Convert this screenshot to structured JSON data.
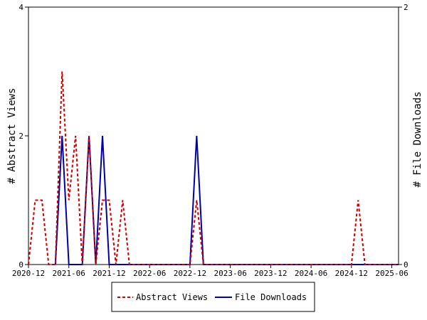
{
  "chart_data": {
    "type": "line",
    "x_ticks": [
      "2020-12",
      "2021-06",
      "2021-12",
      "2022-06",
      "2022-12",
      "2023-06",
      "2023-12",
      "2024-06",
      "2024-12",
      "2025-06"
    ],
    "xlim": [
      "2020-12",
      "2025-07"
    ],
    "ylabel_left": "# Abstract Views",
    "ylabel_right": "# File Downloads",
    "ylim_left": [
      0,
      4
    ],
    "ylim_right": [
      0,
      2
    ],
    "yticks_left": [
      0,
      2,
      4
    ],
    "yticks_right": [
      0,
      2
    ],
    "legend_position": "bottom",
    "series": [
      {
        "name": "Abstract Views",
        "axis": "left",
        "color": "#cc0000",
        "style": "dashed",
        "points": [
          [
            "2020-12",
            0
          ],
          [
            "2021-01",
            1
          ],
          [
            "2021-02",
            1
          ],
          [
            "2021-03",
            0
          ],
          [
            "2021-04",
            0
          ],
          [
            "2021-05",
            3
          ],
          [
            "2021-06",
            1
          ],
          [
            "2021-07",
            2
          ],
          [
            "2021-08",
            0
          ],
          [
            "2021-09",
            2
          ],
          [
            "2021-10",
            0
          ],
          [
            "2021-11",
            1
          ],
          [
            "2021-12",
            1
          ],
          [
            "2022-01",
            0
          ],
          [
            "2022-02",
            1
          ],
          [
            "2022-03",
            0
          ],
          [
            "2022-12",
            0
          ],
          [
            "2023-01",
            1
          ],
          [
            "2023-02",
            0
          ],
          [
            "2024-12",
            0
          ],
          [
            "2025-01",
            1
          ],
          [
            "2025-02",
            0
          ],
          [
            "2025-07",
            0
          ]
        ]
      },
      {
        "name": "File Downloads",
        "axis": "right",
        "color": "#0000aa",
        "style": "solid",
        "points": [
          [
            "2021-04",
            0
          ],
          [
            "2021-05",
            1
          ],
          [
            "2021-06",
            0
          ],
          [
            "2021-08",
            0
          ],
          [
            "2021-09",
            1
          ],
          [
            "2021-10",
            0
          ],
          [
            "2021-11",
            1
          ],
          [
            "2021-12",
            0
          ],
          [
            "2022-12",
            0
          ],
          [
            "2023-01",
            1
          ],
          [
            "2023-02",
            0
          ],
          [
            "2025-07",
            0
          ]
        ]
      }
    ]
  }
}
